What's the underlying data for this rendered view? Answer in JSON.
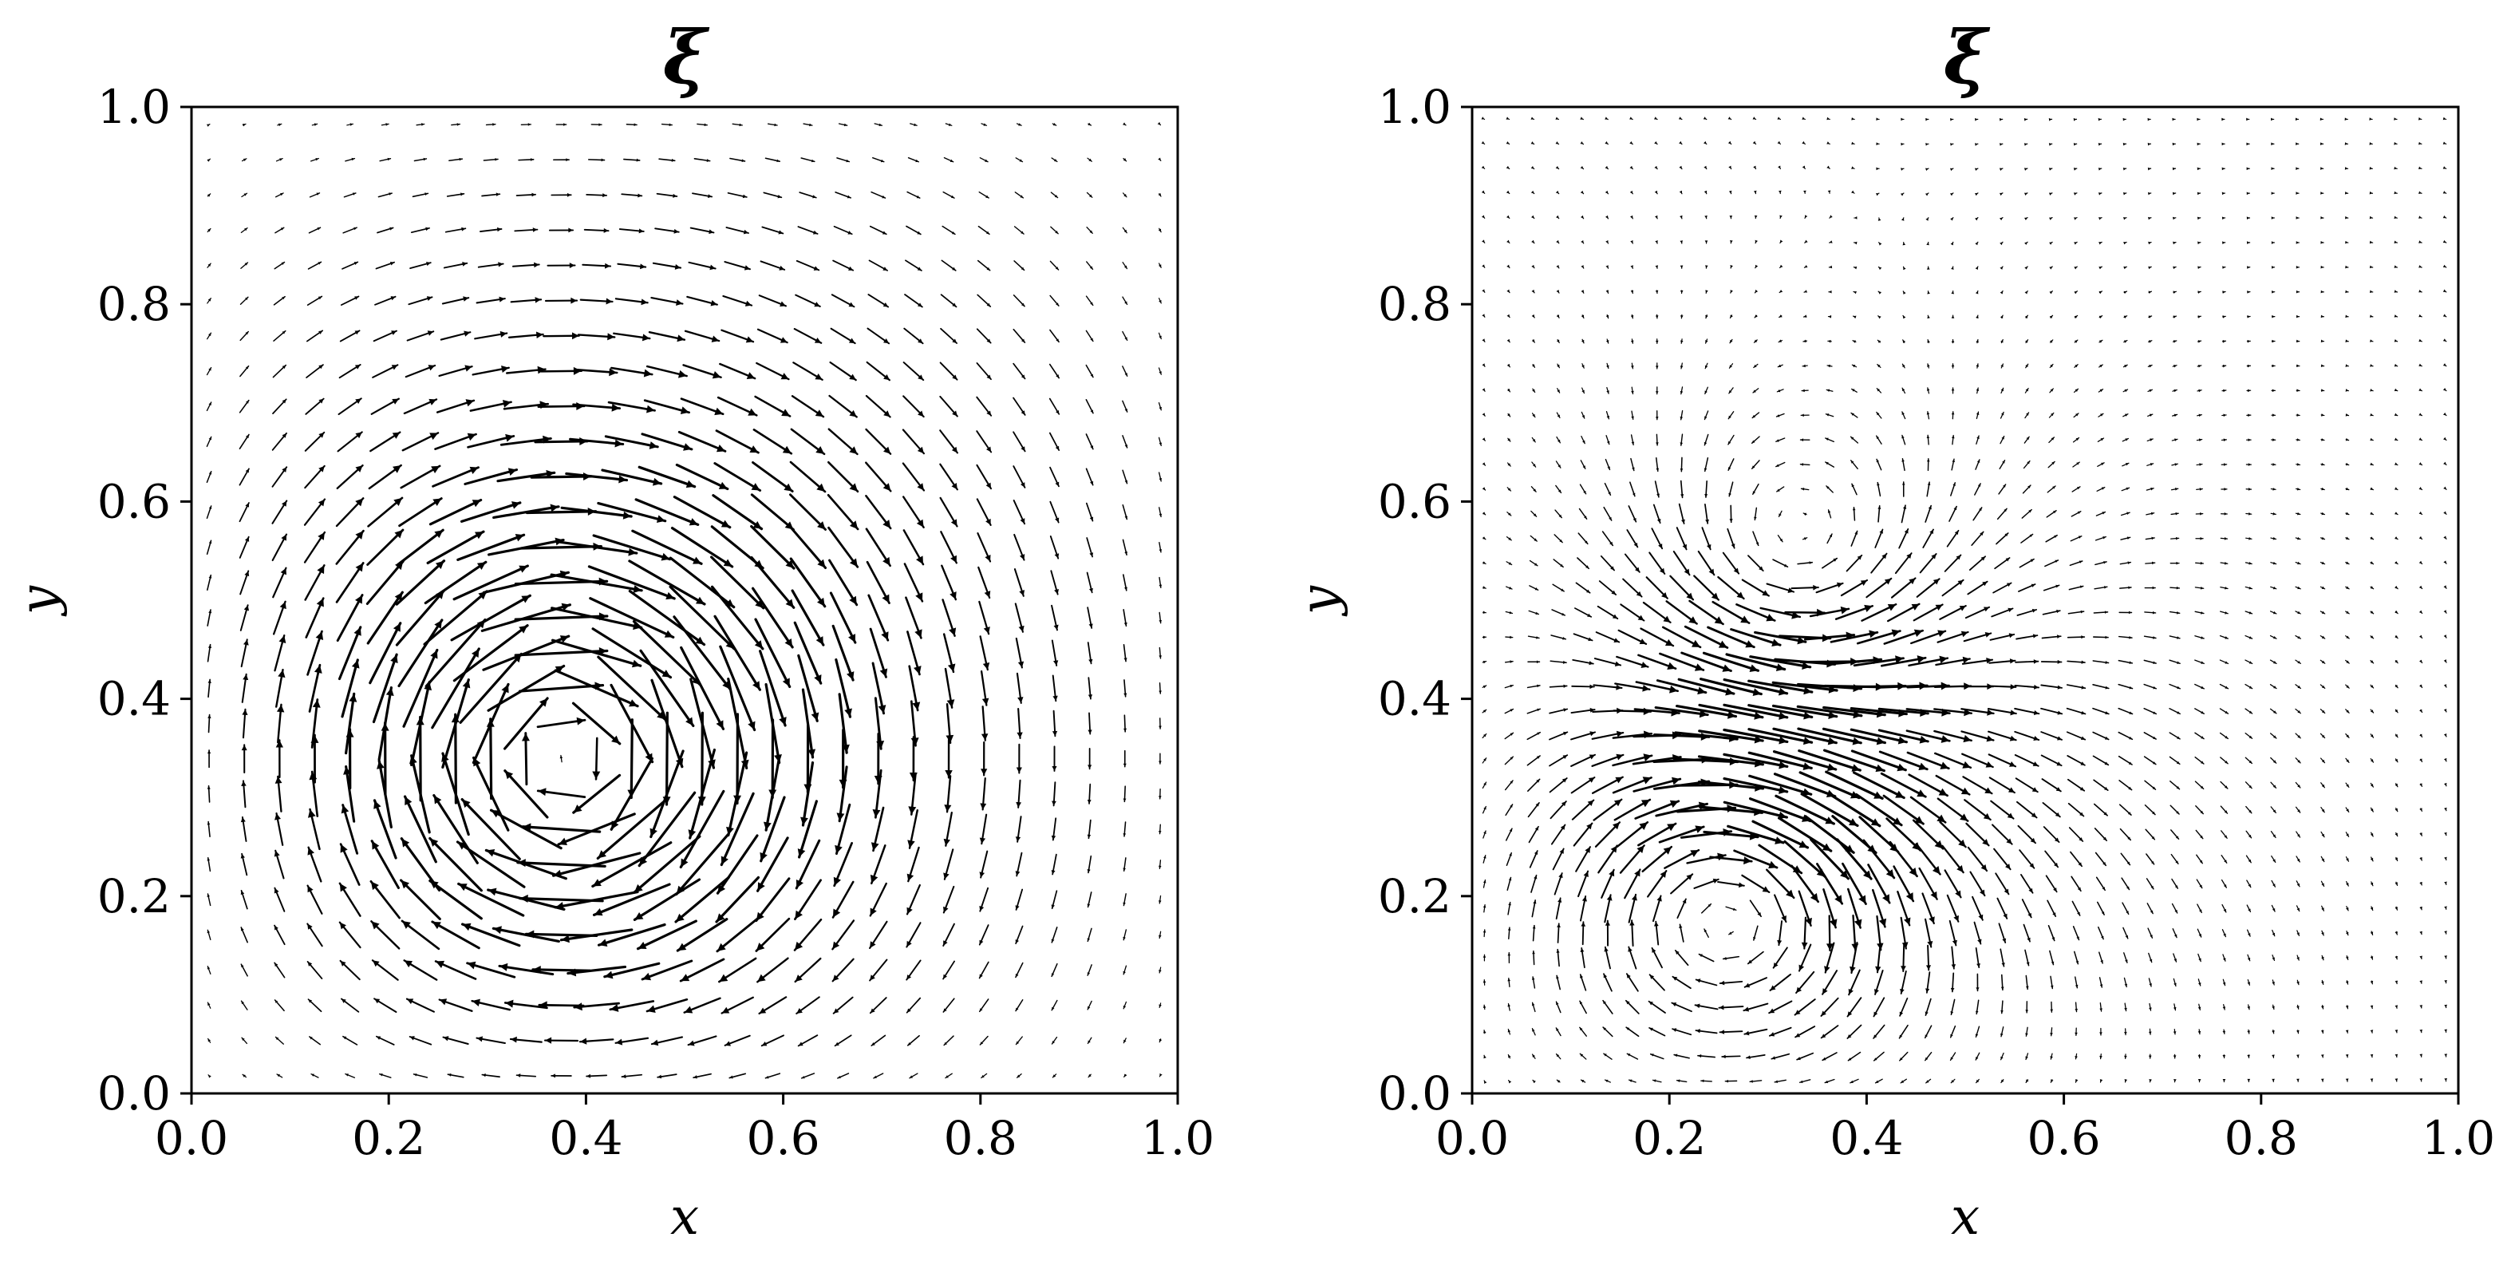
{
  "chart_data": [
    {
      "type": "quiver",
      "title": "ξ",
      "xlabel": "x",
      "ylabel": "y",
      "xlim": [
        0.0,
        1.0
      ],
      "ylim": [
        0.0,
        1.0
      ],
      "xticks": [
        "0.0",
        "0.2",
        "0.4",
        "0.6",
        "0.8",
        "1.0"
      ],
      "yticks": [
        "0.0",
        "0.2",
        "0.4",
        "0.6",
        "0.8",
        "1.0"
      ],
      "grid": false,
      "field": {
        "grid_points_per_axis": 28,
        "vortices": [
          {
            "x": 0.38,
            "y": 0.34,
            "rotation": "clockwise",
            "strength": 1.0
          }
        ]
      }
    },
    {
      "type": "quiver",
      "title": "ξ",
      "xlabel": "x",
      "ylabel": "y",
      "xlim": [
        0.0,
        1.0
      ],
      "ylim": [
        0.0,
        1.0
      ],
      "xticks": [
        "0.0",
        "0.2",
        "0.4",
        "0.6",
        "0.8",
        "1.0"
      ],
      "yticks": [
        "0.0",
        "0.2",
        "0.4",
        "0.6",
        "0.8",
        "1.0"
      ],
      "grid": false,
      "field": {
        "grid_points_per_axis": 40,
        "vortices": [
          {
            "x": 0.26,
            "y": 0.19,
            "rotation": "clockwise",
            "strength": 1.0
          },
          {
            "x": 0.32,
            "y": 0.51,
            "rotation": "counterclockwise",
            "strength": 0.55
          }
        ]
      }
    }
  ]
}
